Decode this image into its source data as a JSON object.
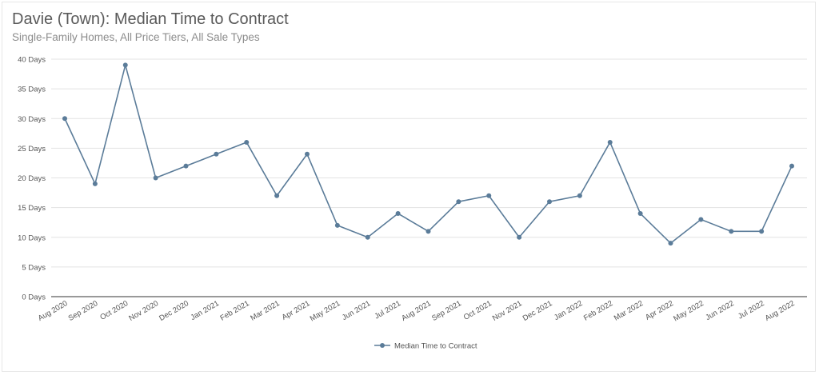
{
  "chart_data": {
    "type": "line",
    "title": "Davie (Town): Median Time to Contract",
    "subtitle": "Single-Family Homes, All Price Tiers, All Sale Types",
    "categories": [
      "Aug 2020",
      "Sep 2020",
      "Oct 2020",
      "Nov 2020",
      "Dec 2020",
      "Jan 2021",
      "Feb 2021",
      "Mar 2021",
      "Apr 2021",
      "May 2021",
      "Jun 2021",
      "Jul 2021",
      "Aug 2021",
      "Sep 2021",
      "Oct 2021",
      "Nov 2021",
      "Dec 2021",
      "Jan 2022",
      "Feb 2022",
      "Mar 2022",
      "Apr 2022",
      "May 2022",
      "Jun 2022",
      "Jul 2022",
      "Aug 2022"
    ],
    "series": [
      {
        "name": "Median Time to Contract",
        "values": [
          30,
          19,
          39,
          20,
          22,
          24,
          26,
          17,
          24,
          12,
          10,
          14,
          11,
          16,
          17,
          10,
          16,
          17,
          26,
          14,
          9,
          13,
          11,
          11,
          22
        ]
      }
    ],
    "y_ticks": [
      "0 Days",
      "5 Days",
      "10 Days",
      "15 Days",
      "20 Days",
      "25 Days",
      "30 Days",
      "35 Days",
      "40 Days"
    ],
    "ylim": [
      0,
      40
    ],
    "grid": true,
    "legend": "bottom-center",
    "colors": {
      "line": "#5b7c99",
      "grid": "#e3e3e3",
      "axis": "#333333"
    }
  }
}
